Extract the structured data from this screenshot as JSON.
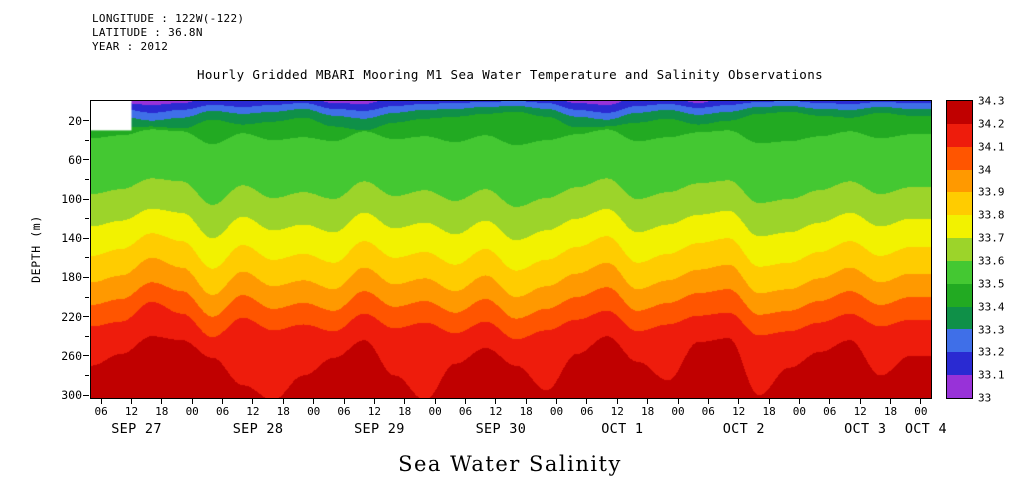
{
  "header": {
    "line1": "LONGITUDE : 122W(-122)",
    "line2": "LATITUDE : 36.8N",
    "line3": "YEAR : 2012"
  },
  "chart_data": {
    "type": "heatmap",
    "title": "Hourly Gridded MBARI Mooring M1 Sea Water Temperature and Salinity Observations",
    "variable": "Sea Water Salinity",
    "x_range_hours": [
      4,
      170
    ],
    "depth_range_m": [
      0,
      303
    ],
    "x_hours": [
      4,
      10,
      16,
      22,
      28,
      34,
      40,
      46,
      52,
      58,
      64,
      70,
      76,
      82,
      88,
      94,
      100,
      106,
      112,
      118,
      124,
      130,
      136,
      142,
      148,
      154,
      160,
      166
    ],
    "isohalines": [
      {
        "level": 33.1,
        "depth_m": [
          -4,
          2,
          4,
          2,
          -4,
          -4,
          -4,
          -4,
          2,
          3,
          -4,
          -4,
          -4,
          -4,
          -4,
          -4,
          2,
          4,
          -4,
          -4,
          2,
          -4,
          -4,
          -4,
          -4,
          -4,
          -4,
          -4
        ]
      },
      {
        "level": 33.2,
        "depth_m": [
          3,
          8,
          12,
          9,
          4,
          6,
          4,
          2,
          8,
          10,
          5,
          3,
          2,
          1,
          0,
          2,
          9,
          12,
          5,
          3,
          7,
          4,
          1,
          0,
          2,
          3,
          1,
          2
        ]
      },
      {
        "level": 33.3,
        "depth_m": [
          10,
          16,
          20,
          17,
          10,
          13,
          11,
          8,
          15,
          18,
          12,
          9,
          8,
          6,
          5,
          8,
          16,
          19,
          12,
          9,
          14,
          11,
          6,
          5,
          8,
          9,
          6,
          8
        ]
      },
      {
        "level": 33.4,
        "depth_m": [
          20,
          27,
          26,
          28,
          19,
          24,
          21,
          17,
          26,
          30,
          22,
          18,
          16,
          13,
          11,
          16,
          27,
          26,
          22,
          18,
          24,
          20,
          13,
          11,
          15,
          17,
          12,
          15
        ]
      },
      {
        "level": 33.5,
        "depth_m": [
          38,
          35,
          29,
          31,
          44,
          33,
          40,
          37,
          41,
          31,
          39,
          36,
          42,
          35,
          45,
          40,
          34,
          29,
          41,
          37,
          32,
          30,
          43,
          41,
          36,
          31,
          38,
          34
        ]
      },
      {
        "level": 33.6,
        "depth_m": [
          95,
          90,
          79,
          82,
          106,
          86,
          99,
          93,
          100,
          82,
          97,
          91,
          102,
          90,
          108,
          99,
          88,
          79,
          100,
          93,
          84,
          81,
          104,
          100,
          91,
          82,
          95,
          88
        ]
      },
      {
        "level": 33.7,
        "depth_m": [
          128,
          122,
          110,
          114,
          140,
          118,
          132,
          126,
          134,
          114,
          130,
          124,
          136,
          122,
          142,
          132,
          120,
          110,
          134,
          126,
          116,
          112,
          138,
          134,
          124,
          114,
          128,
          120
        ]
      },
      {
        "level": 33.8,
        "depth_m": [
          158,
          151,
          135,
          143,
          171,
          147,
          162,
          156,
          165,
          143,
          160,
          154,
          167,
          151,
          173,
          162,
          149,
          138,
          165,
          156,
          145,
          140,
          169,
          165,
          154,
          143,
          158,
          149
        ]
      },
      {
        "level": 33.9,
        "depth_m": [
          185,
          178,
          160,
          170,
          198,
          174,
          189,
          183,
          192,
          170,
          187,
          181,
          194,
          178,
          200,
          189,
          176,
          165,
          192,
          183,
          172,
          167,
          196,
          192,
          181,
          170,
          185,
          176
        ]
      },
      {
        "level": 34.0,
        "depth_m": [
          208,
          202,
          185,
          194,
          220,
          198,
          212,
          206,
          214,
          194,
          210,
          204,
          216,
          202,
          222,
          212,
          200,
          190,
          214,
          206,
          196,
          192,
          218,
          214,
          204,
          194,
          208,
          200
        ]
      },
      {
        "level": 34.1,
        "depth_m": [
          230,
          225,
          205,
          217,
          241,
          221,
          234,
          228,
          235,
          217,
          232,
          226,
          237,
          225,
          243,
          234,
          223,
          214,
          235,
          228,
          219,
          216,
          239,
          235,
          226,
          217,
          230,
          223
        ]
      },
      {
        "level": 34.2,
        "depth_m": [
          270,
          258,
          240,
          244,
          262,
          290,
          305,
          280,
          262,
          244,
          280,
          305,
          268,
          252,
          270,
          295,
          258,
          240,
          266,
          285,
          246,
          242,
          300,
          272,
          256,
          244,
          280,
          260
        ]
      }
    ],
    "missing_region": {
      "hours_before": 12,
      "shallower_than_m": 30
    },
    "x_axis": {
      "tick_hours": [
        6,
        12,
        18,
        24,
        30,
        36,
        42,
        48,
        54,
        60,
        66,
        72,
        78,
        84,
        90,
        96,
        102,
        108,
        114,
        120,
        126,
        132,
        138,
        144,
        150,
        156,
        162,
        168
      ],
      "tick_labels": [
        "06",
        "12",
        "18",
        "00",
        "06",
        "12",
        "18",
        "00",
        "06",
        "12",
        "18",
        "00",
        "06",
        "12",
        "18",
        "00",
        "06",
        "12",
        "18",
        "00",
        "06",
        "12",
        "18",
        "00",
        "06",
        "12",
        "18",
        "00"
      ],
      "date_hours": [
        13,
        37,
        61,
        85,
        109,
        133,
        157,
        169
      ],
      "date_labels": [
        "SEP 27",
        "SEP 28",
        "SEP 29",
        "SEP 30",
        "OCT 1",
        "OCT 2",
        "OCT 3",
        "OCT 4"
      ]
    },
    "y_axis": {
      "label": "DEPTH (m)",
      "tick_depths": [
        20,
        60,
        100,
        140,
        180,
        220,
        260,
        300
      ],
      "minor_tick_depths": [
        40,
        80,
        120,
        160,
        200,
        240,
        280
      ]
    },
    "colorbar": {
      "tick_labels_top_to_bottom": [
        "34.3",
        "34.2",
        "34.1",
        "34",
        "33.9",
        "33.8",
        "33.7",
        "33.6",
        "33.5",
        "33.4",
        "33.3",
        "33.2",
        "33.1",
        "33"
      ],
      "colors_low_to_high": [
        "#9832d8",
        "#2a2ad2",
        "#3f6fe8",
        "#0f9048",
        "#22aa22",
        "#44c832",
        "#9cd42a",
        "#f2f200",
        "#ffcc00",
        "#ff9900",
        "#ff5500",
        "#ee1c0c",
        "#c00000"
      ]
    }
  }
}
